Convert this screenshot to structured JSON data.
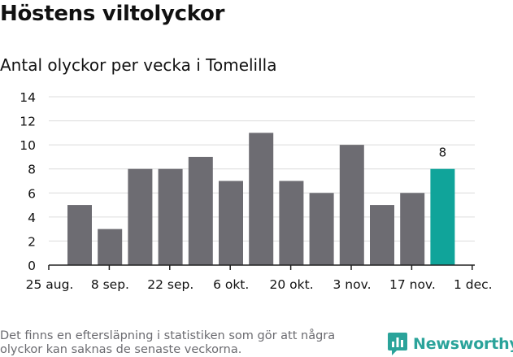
{
  "header": {
    "title": "Höstens viltolyckor",
    "subtitle": "Antal olyckor per vecka i Tomelilla"
  },
  "footer": {
    "note": "Det finns en eftersläpning i statistiken som gör att några olyckor kan saknas de senaste veckorna.",
    "brand": "Newsworthy"
  },
  "colors": {
    "bar": "#6d6c72",
    "highlight": "#10a49a",
    "grid": "#dcdcdc",
    "axis": "#222222",
    "brand": "#2aa39a"
  },
  "chart_data": {
    "type": "bar",
    "title": "Höstens viltolyckor",
    "subtitle": "Antal olyckor per vecka i Tomelilla",
    "xlabel": "",
    "ylabel": "",
    "ylim": [
      0,
      14
    ],
    "yticks": [
      0,
      2,
      4,
      6,
      8,
      10,
      12,
      14
    ],
    "grid": true,
    "x_tick_labels": [
      "25 aug.",
      "8 sep.",
      "22 sep.",
      "6 okt.",
      "20 okt.",
      "3 nov.",
      "17 nov.",
      "1 dec."
    ],
    "values": [
      5,
      3,
      8,
      8,
      9,
      7,
      11,
      7,
      6,
      10,
      5,
      6,
      8
    ],
    "highlight_index": 12,
    "data_labels": [
      {
        "index": 12,
        "text": "8"
      }
    ]
  }
}
